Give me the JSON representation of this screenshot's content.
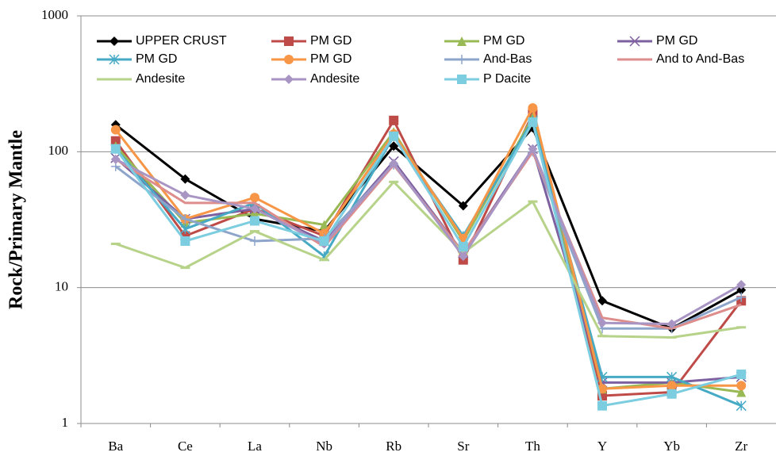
{
  "chart_data": {
    "type": "line",
    "y_label": "Rock/Primary Mantle",
    "yscale": "log",
    "grid": true,
    "categories": [
      "Ba",
      "Ce",
      "La",
      "Nb",
      "Rb",
      "Sr",
      "Th",
      "Y",
      "Yb",
      "Zr"
    ],
    "ylim": [
      1,
      1000
    ],
    "yticks": [
      1,
      10,
      100,
      1000
    ],
    "series": [
      {
        "name": "UPPER CRUST",
        "color": "#000000",
        "marker": "diamond",
        "values": [
          158,
          63,
          32,
          26,
          110,
          40,
          150,
          8,
          5,
          9.6
        ]
      },
      {
        "name": "PM GD",
        "color": "#be4b48",
        "marker": "square",
        "values": [
          120,
          24,
          38,
          24,
          170,
          16,
          190,
          1.6,
          1.7,
          8
        ]
      },
      {
        "name": "PM GD",
        "color": "#98b954",
        "marker": "triangle",
        "values": [
          110,
          30,
          35,
          29,
          140,
          22,
          180,
          1.8,
          2.0,
          1.7
        ]
      },
      {
        "name": "PM GD",
        "color": "#7d60a0",
        "marker": "x",
        "values": [
          90,
          32,
          38,
          22,
          85,
          18,
          105,
          2.0,
          2.0,
          2.2
        ]
      },
      {
        "name": "PM GD",
        "color": "#46aac5",
        "marker": "asterisk",
        "values": [
          105,
          27,
          42,
          17,
          130,
          24,
          170,
          2.2,
          2.2,
          1.35
        ]
      },
      {
        "name": "PM GD",
        "color": "#f79646",
        "marker": "circle",
        "values": [
          145,
          32,
          46,
          25,
          135,
          23,
          210,
          1.8,
          1.9,
          1.9
        ]
      },
      {
        "name": "And-Bas",
        "color": "#8ea5cb",
        "marker": "plus",
        "values": [
          78,
          32,
          22,
          23,
          80,
          18,
          100,
          5,
          5,
          8.5
        ]
      },
      {
        "name": "And to And-Bas",
        "color": "#dd8d8b",
        "marker": "none",
        "values": [
          88,
          42,
          42,
          20,
          80,
          18,
          100,
          6,
          5,
          7.5
        ]
      },
      {
        "name": "Andesite",
        "color": "#b7d38a",
        "marker": "dash",
        "values": [
          21,
          14,
          26,
          16,
          60,
          18,
          43,
          4.4,
          4.3,
          5.1
        ]
      },
      {
        "name": "Andesite",
        "color": "#a995c4",
        "marker": "diamond",
        "values": [
          88,
          48,
          38,
          21,
          82,
          17,
          105,
          5.5,
          5.4,
          10.5
        ]
      },
      {
        "name": "P Dacite",
        "color": "#7ccde0",
        "marker": "square",
        "values": [
          105,
          22,
          31,
          22,
          130,
          20,
          165,
          1.35,
          1.65,
          2.3
        ]
      }
    ]
  }
}
